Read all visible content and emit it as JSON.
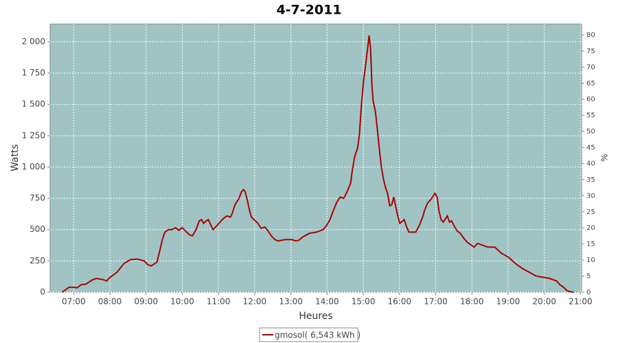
{
  "chart_data": {
    "type": "line",
    "title": "4-7-2011",
    "xlabel": "Heures",
    "ylabel": "Watts",
    "y2label": "%",
    "x": [
      6.68,
      6.87,
      7.0,
      7.09,
      7.21,
      7.34,
      7.53,
      7.63,
      7.82,
      7.91,
      8.01,
      8.2,
      8.39,
      8.57,
      8.76,
      8.95,
      9.05,
      9.14,
      9.3,
      9.37,
      9.45,
      9.52,
      9.62,
      9.71,
      9.81,
      9.9,
      10.0,
      10.19,
      10.28,
      10.38,
      10.47,
      10.53,
      10.59,
      10.66,
      10.72,
      10.8,
      10.85,
      10.95,
      11.04,
      11.14,
      11.23,
      11.33,
      11.38,
      11.46,
      11.57,
      11.63,
      11.69,
      11.74,
      11.8,
      11.86,
      11.91,
      12.09,
      12.18,
      12.28,
      12.37,
      12.46,
      12.56,
      12.65,
      12.84,
      13.03,
      13.13,
      13.22,
      13.32,
      13.51,
      13.7,
      13.89,
      13.98,
      14.08,
      14.17,
      14.27,
      14.36,
      14.46,
      14.55,
      14.65,
      14.7,
      14.76,
      14.84,
      14.89,
      14.95,
      15.01,
      15.06,
      15.12,
      15.16,
      15.2,
      15.24,
      15.27,
      15.33,
      15.39,
      15.44,
      15.5,
      15.56,
      15.61,
      15.67,
      15.73,
      15.79,
      15.84,
      15.9,
      15.96,
      16.01,
      16.13,
      16.2,
      16.26,
      16.45,
      16.54,
      16.64,
      16.7,
      16.77,
      16.89,
      16.98,
      17.04,
      17.09,
      17.15,
      17.21,
      17.32,
      17.38,
      17.44,
      17.49,
      17.59,
      17.68,
      17.78,
      17.87,
      18.06,
      18.16,
      18.25,
      18.44,
      18.63,
      18.82,
      19.01,
      19.2,
      19.39,
      19.58,
      19.77,
      19.96,
      20.15,
      20.34,
      20.43,
      20.53,
      20.64,
      20.81
    ],
    "series": [
      {
        "name": "gmosol( 6,543 kWh )",
        "color": "#aa0000",
        "values": [
          0,
          40,
          40,
          35,
          60,
          65,
          100,
          110,
          100,
          90,
          120,
          160,
          230,
          260,
          265,
          250,
          220,
          210,
          240,
          320,
          420,
          480,
          500,
          500,
          515,
          495,
          515,
          460,
          450,
          500,
          570,
          580,
          550,
          570,
          580,
          530,
          500,
          530,
          560,
          590,
          610,
          600,
          630,
          700,
          750,
          800,
          820,
          800,
          730,
          650,
          600,
          550,
          510,
          520,
          490,
          450,
          420,
          410,
          420,
          420,
          410,
          415,
          440,
          470,
          480,
          500,
          530,
          580,
          650,
          720,
          760,
          750,
          800,
          870,
          980,
          1080,
          1150,
          1250,
          1500,
          1700,
          1800,
          1950,
          2050,
          1950,
          1650,
          1530,
          1450,
          1300,
          1150,
          1000,
          900,
          840,
          790,
          690,
          700,
          760,
          680,
          600,
          550,
          580,
          520,
          480,
          480,
          530,
          600,
          660,
          710,
          750,
          790,
          760,
          650,
          580,
          560,
          610,
          560,
          570,
          540,
          490,
          470,
          430,
          400,
          360,
          390,
          380,
          360,
          360,
          310,
          280,
          230,
          190,
          160,
          130,
          120,
          110,
          90,
          60,
          40,
          10,
          0
        ]
      }
    ],
    "xlim": [
      6.35,
      21.03
    ],
    "xticks": [
      {
        "value": 7,
        "label": "07:00"
      },
      {
        "value": 8,
        "label": "08:00"
      },
      {
        "value": 9,
        "label": "09:00"
      },
      {
        "value": 10,
        "label": "10:00"
      },
      {
        "value": 11,
        "label": "11:00"
      },
      {
        "value": 12,
        "label": "12:00"
      },
      {
        "value": 13,
        "label": "13:00"
      },
      {
        "value": 14,
        "label": "14:00"
      },
      {
        "value": 15,
        "label": "15:00"
      },
      {
        "value": 16,
        "label": "16:00"
      },
      {
        "value": 17,
        "label": "17:00"
      },
      {
        "value": 18,
        "label": "18:00"
      },
      {
        "value": 19,
        "label": "19:00"
      },
      {
        "value": 20,
        "label": "20:00"
      },
      {
        "value": 21,
        "label": "21:00"
      }
    ],
    "ylim": [
      0,
      2142
    ],
    "yticks": [
      0,
      250,
      500,
      750,
      {
        "value": 1000,
        "label": "1 000"
      },
      {
        "value": 1250,
        "label": "1 250"
      },
      {
        "value": 1500,
        "label": "1 500"
      },
      {
        "value": 1750,
        "label": "1 750"
      },
      {
        "value": 2000,
        "label": "2 000"
      }
    ],
    "y2lim": [
      0,
      83.4
    ],
    "y2ticks": [
      0,
      5,
      10,
      15,
      20,
      25,
      30,
      35,
      40,
      45,
      50,
      55,
      60,
      65,
      70,
      75,
      80
    ],
    "grid": true,
    "plot_background": "#a0c4c3"
  }
}
